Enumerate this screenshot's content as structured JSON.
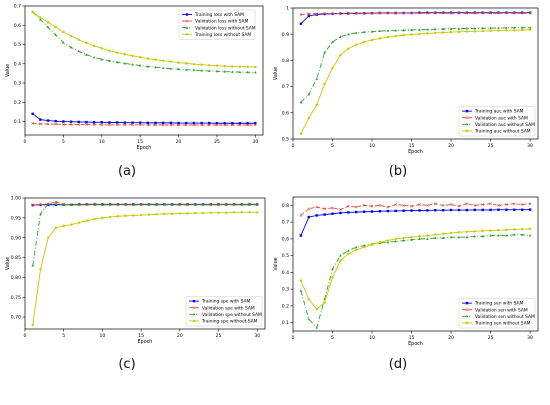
{
  "chart_data": [
    {
      "panel": "(a)",
      "type": "line",
      "xlabel": "Epoch",
      "ylabel": "Value",
      "xlim": [
        0,
        31
      ],
      "ylim": [
        0.03,
        0.7
      ],
      "xticks": [
        0,
        5,
        10,
        15,
        20,
        25,
        30
      ],
      "yticks": [
        0.1,
        0.2,
        0.3,
        0.4,
        0.5,
        0.6,
        0.7
      ],
      "legend_position": "center-right",
      "x": [
        1,
        2,
        3,
        4,
        5,
        6,
        7,
        8,
        9,
        10,
        11,
        12,
        13,
        14,
        15,
        16,
        17,
        18,
        19,
        20,
        21,
        22,
        23,
        24,
        25,
        26,
        27,
        28,
        29,
        30
      ],
      "series": [
        {
          "name": "Training loss with SAM",
          "color": "#0000ff",
          "marker": "square",
          "style": "solid",
          "values": [
            0.14,
            0.11,
            0.105,
            0.102,
            0.1,
            0.099,
            0.098,
            0.097,
            0.096,
            0.096,
            0.095,
            0.095,
            0.094,
            0.094,
            0.094,
            0.093,
            0.093,
            0.093,
            0.093,
            0.092,
            0.092,
            0.092,
            0.092,
            0.092,
            0.091,
            0.091,
            0.091,
            0.091,
            0.091,
            0.091
          ]
        },
        {
          "name": "Validation loss with SAM",
          "color": "#e34a33",
          "marker": "x",
          "style": "dashed",
          "values": [
            0.09,
            0.088,
            0.087,
            0.086,
            0.085,
            0.085,
            0.084,
            0.084,
            0.084,
            0.083,
            0.083,
            0.083,
            0.083,
            0.083,
            0.083,
            0.082,
            0.082,
            0.082,
            0.082,
            0.082,
            0.082,
            0.082,
            0.082,
            0.082,
            0.082,
            0.082,
            0.082,
            0.082,
            0.082,
            0.082
          ]
        },
        {
          "name": "Validation loss without SAM",
          "color": "#2ca02c",
          "marker": "triangle",
          "style": "dashdot",
          "values": [
            0.67,
            0.63,
            0.59,
            0.55,
            0.51,
            0.485,
            0.465,
            0.447,
            0.433,
            0.423,
            0.415,
            0.408,
            0.402,
            0.396,
            0.391,
            0.386,
            0.382,
            0.378,
            0.375,
            0.372,
            0.369,
            0.367,
            0.365,
            0.363,
            0.361,
            0.359,
            0.358,
            0.357,
            0.356,
            0.355
          ]
        },
        {
          "name": "Training loss without SAM",
          "color": "#c8c800",
          "marker": "circle",
          "style": "solid",
          "values": [
            0.67,
            0.64,
            0.615,
            0.59,
            0.565,
            0.545,
            0.525,
            0.508,
            0.493,
            0.48,
            0.468,
            0.458,
            0.449,
            0.441,
            0.434,
            0.427,
            0.421,
            0.416,
            0.411,
            0.406,
            0.402,
            0.398,
            0.395,
            0.392,
            0.39,
            0.388,
            0.386,
            0.385,
            0.384,
            0.383
          ]
        }
      ]
    },
    {
      "panel": "(b)",
      "type": "line",
      "xlabel": "Epoch",
      "ylabel": "Value",
      "xlim": [
        0,
        31
      ],
      "ylim": [
        0.5,
        1.0
      ],
      "xticks": [
        0,
        5,
        10,
        15,
        20,
        25,
        30
      ],
      "yticks": [
        0.5,
        0.6,
        0.7,
        0.8,
        0.9,
        1.0
      ],
      "legend_position": "bottom-right",
      "x": [
        1,
        2,
        3,
        4,
        5,
        6,
        7,
        8,
        9,
        10,
        11,
        12,
        13,
        14,
        15,
        16,
        17,
        18,
        19,
        20,
        21,
        22,
        23,
        24,
        25,
        26,
        27,
        28,
        29,
        30
      ],
      "series": [
        {
          "name": "Training auc with SAM",
          "color": "#0000ff",
          "marker": "square",
          "style": "solid",
          "values": [
            0.94,
            0.97,
            0.975,
            0.977,
            0.978,
            0.979,
            0.979,
            0.98,
            0.98,
            0.98,
            0.981,
            0.981,
            0.981,
            0.981,
            0.981,
            0.982,
            0.982,
            0.982,
            0.982,
            0.982,
            0.982,
            0.982,
            0.982,
            0.982,
            0.982,
            0.982,
            0.982,
            0.982,
            0.982,
            0.982
          ]
        },
        {
          "name": "Validation auc with SAM",
          "color": "#e34a33",
          "marker": "x",
          "style": "dashed",
          "values": [
            0.975,
            0.978,
            0.978,
            0.979,
            0.979,
            0.979,
            0.98,
            0.98,
            0.98,
            0.98,
            0.98,
            0.98,
            0.98,
            0.98,
            0.98,
            0.98,
            0.98,
            0.98,
            0.98,
            0.98,
            0.98,
            0.98,
            0.98,
            0.98,
            0.98,
            0.98,
            0.98,
            0.98,
            0.98,
            0.98
          ]
        },
        {
          "name": "Validation auc without SAM",
          "color": "#2ca02c",
          "marker": "triangle",
          "style": "dashdot",
          "values": [
            0.64,
            0.67,
            0.73,
            0.83,
            0.87,
            0.89,
            0.9,
            0.905,
            0.908,
            0.91,
            0.912,
            0.913,
            0.914,
            0.915,
            0.916,
            0.917,
            0.918,
            0.919,
            0.92,
            0.921,
            0.921,
            0.922,
            0.922,
            0.923,
            0.923,
            0.924,
            0.924,
            0.925,
            0.925,
            0.925
          ]
        },
        {
          "name": "Training auc without SAM",
          "color": "#c8c800",
          "marker": "circle",
          "style": "solid",
          "values": [
            0.52,
            0.58,
            0.63,
            0.71,
            0.77,
            0.82,
            0.845,
            0.86,
            0.87,
            0.878,
            0.884,
            0.889,
            0.893,
            0.896,
            0.899,
            0.901,
            0.903,
            0.905,
            0.906,
            0.908,
            0.909,
            0.91,
            0.911,
            0.912,
            0.913,
            0.914,
            0.915,
            0.915,
            0.916,
            0.917
          ]
        }
      ]
    },
    {
      "panel": "(c)",
      "type": "line",
      "xlabel": "Epoch",
      "ylabel": "Value",
      "xlim": [
        0,
        31
      ],
      "ylim": [
        0.67,
        1.0
      ],
      "xticks": [
        0,
        5,
        10,
        15,
        20,
        25,
        30
      ],
      "yticks": [
        0.7,
        0.75,
        0.8,
        0.85,
        0.9,
        0.95,
        1.0
      ],
      "ytick_labels": [
        "0.70",
        "0.75",
        "0.80",
        "0.85",
        "0.90",
        "0.95",
        "1.00"
      ],
      "legend_position": "bottom-right",
      "x": [
        1,
        2,
        3,
        4,
        5,
        6,
        7,
        8,
        9,
        10,
        11,
        12,
        13,
        14,
        15,
        16,
        17,
        18,
        19,
        20,
        21,
        22,
        23,
        24,
        25,
        26,
        27,
        28,
        29,
        30
      ],
      "series": [
        {
          "name": "Training spe with SAM",
          "color": "#0000ff",
          "marker": "square",
          "style": "solid",
          "values": [
            0.982,
            0.983,
            0.983,
            0.983,
            0.983,
            0.983,
            0.984,
            0.984,
            0.984,
            0.984,
            0.984,
            0.984,
            0.984,
            0.984,
            0.984,
            0.984,
            0.984,
            0.984,
            0.984,
            0.984,
            0.984,
            0.984,
            0.984,
            0.984,
            0.984,
            0.984,
            0.984,
            0.984,
            0.984,
            0.984
          ]
        },
        {
          "name": "Validation spe with SAM",
          "color": "#e34a33",
          "marker": "x",
          "style": "dashed",
          "values": [
            0.983,
            0.983,
            0.985,
            0.99,
            0.985,
            0.983,
            0.983,
            0.983,
            0.983,
            0.983,
            0.983,
            0.983,
            0.983,
            0.983,
            0.983,
            0.983,
            0.983,
            0.983,
            0.983,
            0.983,
            0.983,
            0.983,
            0.983,
            0.983,
            0.983,
            0.983,
            0.983,
            0.983,
            0.983,
            0.983
          ]
        },
        {
          "name": "Validation spe without SAM",
          "color": "#2ca02c",
          "marker": "triangle",
          "style": "dashdot",
          "values": [
            0.83,
            0.96,
            0.985,
            0.985,
            0.983,
            0.983,
            0.983,
            0.983,
            0.983,
            0.983,
            0.983,
            0.983,
            0.983,
            0.983,
            0.983,
            0.983,
            0.983,
            0.983,
            0.983,
            0.983,
            0.983,
            0.983,
            0.983,
            0.983,
            0.983,
            0.983,
            0.983,
            0.983,
            0.983,
            0.983
          ]
        },
        {
          "name": "Training spe without SAM",
          "color": "#c8c800",
          "marker": "circle",
          "style": "solid",
          "values": [
            0.68,
            0.82,
            0.9,
            0.925,
            0.93,
            0.933,
            0.938,
            0.943,
            0.947,
            0.95,
            0.952,
            0.954,
            0.955,
            0.956,
            0.957,
            0.958,
            0.959,
            0.96,
            0.96,
            0.961,
            0.961,
            0.962,
            0.962,
            0.963,
            0.963,
            0.963,
            0.964,
            0.964,
            0.964,
            0.964
          ]
        }
      ]
    },
    {
      "panel": "(d)",
      "type": "line",
      "xlabel": "Epoch",
      "ylabel": "Value",
      "xlim": [
        0,
        31
      ],
      "ylim": [
        0.05,
        0.85
      ],
      "xticks": [
        0,
        5,
        10,
        15,
        20,
        25,
        30
      ],
      "yticks": [
        0.1,
        0.2,
        0.3,
        0.4,
        0.5,
        0.6,
        0.7,
        0.8
      ],
      "legend_position": "bottom-right",
      "x": [
        1,
        2,
        3,
        4,
        5,
        6,
        7,
        8,
        9,
        10,
        11,
        12,
        13,
        14,
        15,
        16,
        17,
        18,
        19,
        20,
        21,
        22,
        23,
        24,
        25,
        26,
        27,
        28,
        29,
        30
      ],
      "series": [
        {
          "name": "Training sen with SAM",
          "color": "#0000ff",
          "marker": "square",
          "style": "solid",
          "values": [
            0.62,
            0.73,
            0.74,
            0.745,
            0.75,
            0.755,
            0.758,
            0.76,
            0.762,
            0.763,
            0.765,
            0.766,
            0.767,
            0.768,
            0.769,
            0.77,
            0.77,
            0.771,
            0.771,
            0.772,
            0.772,
            0.772,
            0.773,
            0.773,
            0.773,
            0.774,
            0.774,
            0.774,
            0.774,
            0.775
          ]
        },
        {
          "name": "Validation sen with SAM",
          "color": "#e34a33",
          "marker": "x",
          "style": "dashed",
          "values": [
            0.74,
            0.78,
            0.79,
            0.78,
            0.785,
            0.775,
            0.795,
            0.79,
            0.8,
            0.795,
            0.8,
            0.79,
            0.805,
            0.8,
            0.795,
            0.805,
            0.8,
            0.81,
            0.8,
            0.805,
            0.795,
            0.81,
            0.8,
            0.805,
            0.81,
            0.8,
            0.805,
            0.81,
            0.805,
            0.81
          ]
        },
        {
          "name": "Validation sen without SAM",
          "color": "#2ca02c",
          "marker": "triangle",
          "style": "dashdot",
          "values": [
            0.29,
            0.12,
            0.07,
            0.24,
            0.42,
            0.5,
            0.53,
            0.55,
            0.56,
            0.57,
            0.575,
            0.58,
            0.585,
            0.59,
            0.595,
            0.6,
            0.6,
            0.605,
            0.605,
            0.61,
            0.61,
            0.61,
            0.615,
            0.615,
            0.62,
            0.62,
            0.62,
            0.625,
            0.625,
            0.62
          ]
        },
        {
          "name": "Training sen without SAM",
          "color": "#c8c800",
          "marker": "circle",
          "style": "solid",
          "values": [
            0.35,
            0.24,
            0.18,
            0.22,
            0.37,
            0.47,
            0.51,
            0.535,
            0.55,
            0.565,
            0.58,
            0.59,
            0.6,
            0.605,
            0.61,
            0.615,
            0.62,
            0.625,
            0.63,
            0.635,
            0.64,
            0.642,
            0.645,
            0.648,
            0.65,
            0.652,
            0.654,
            0.656,
            0.658,
            0.66
          ]
        }
      ]
    }
  ]
}
